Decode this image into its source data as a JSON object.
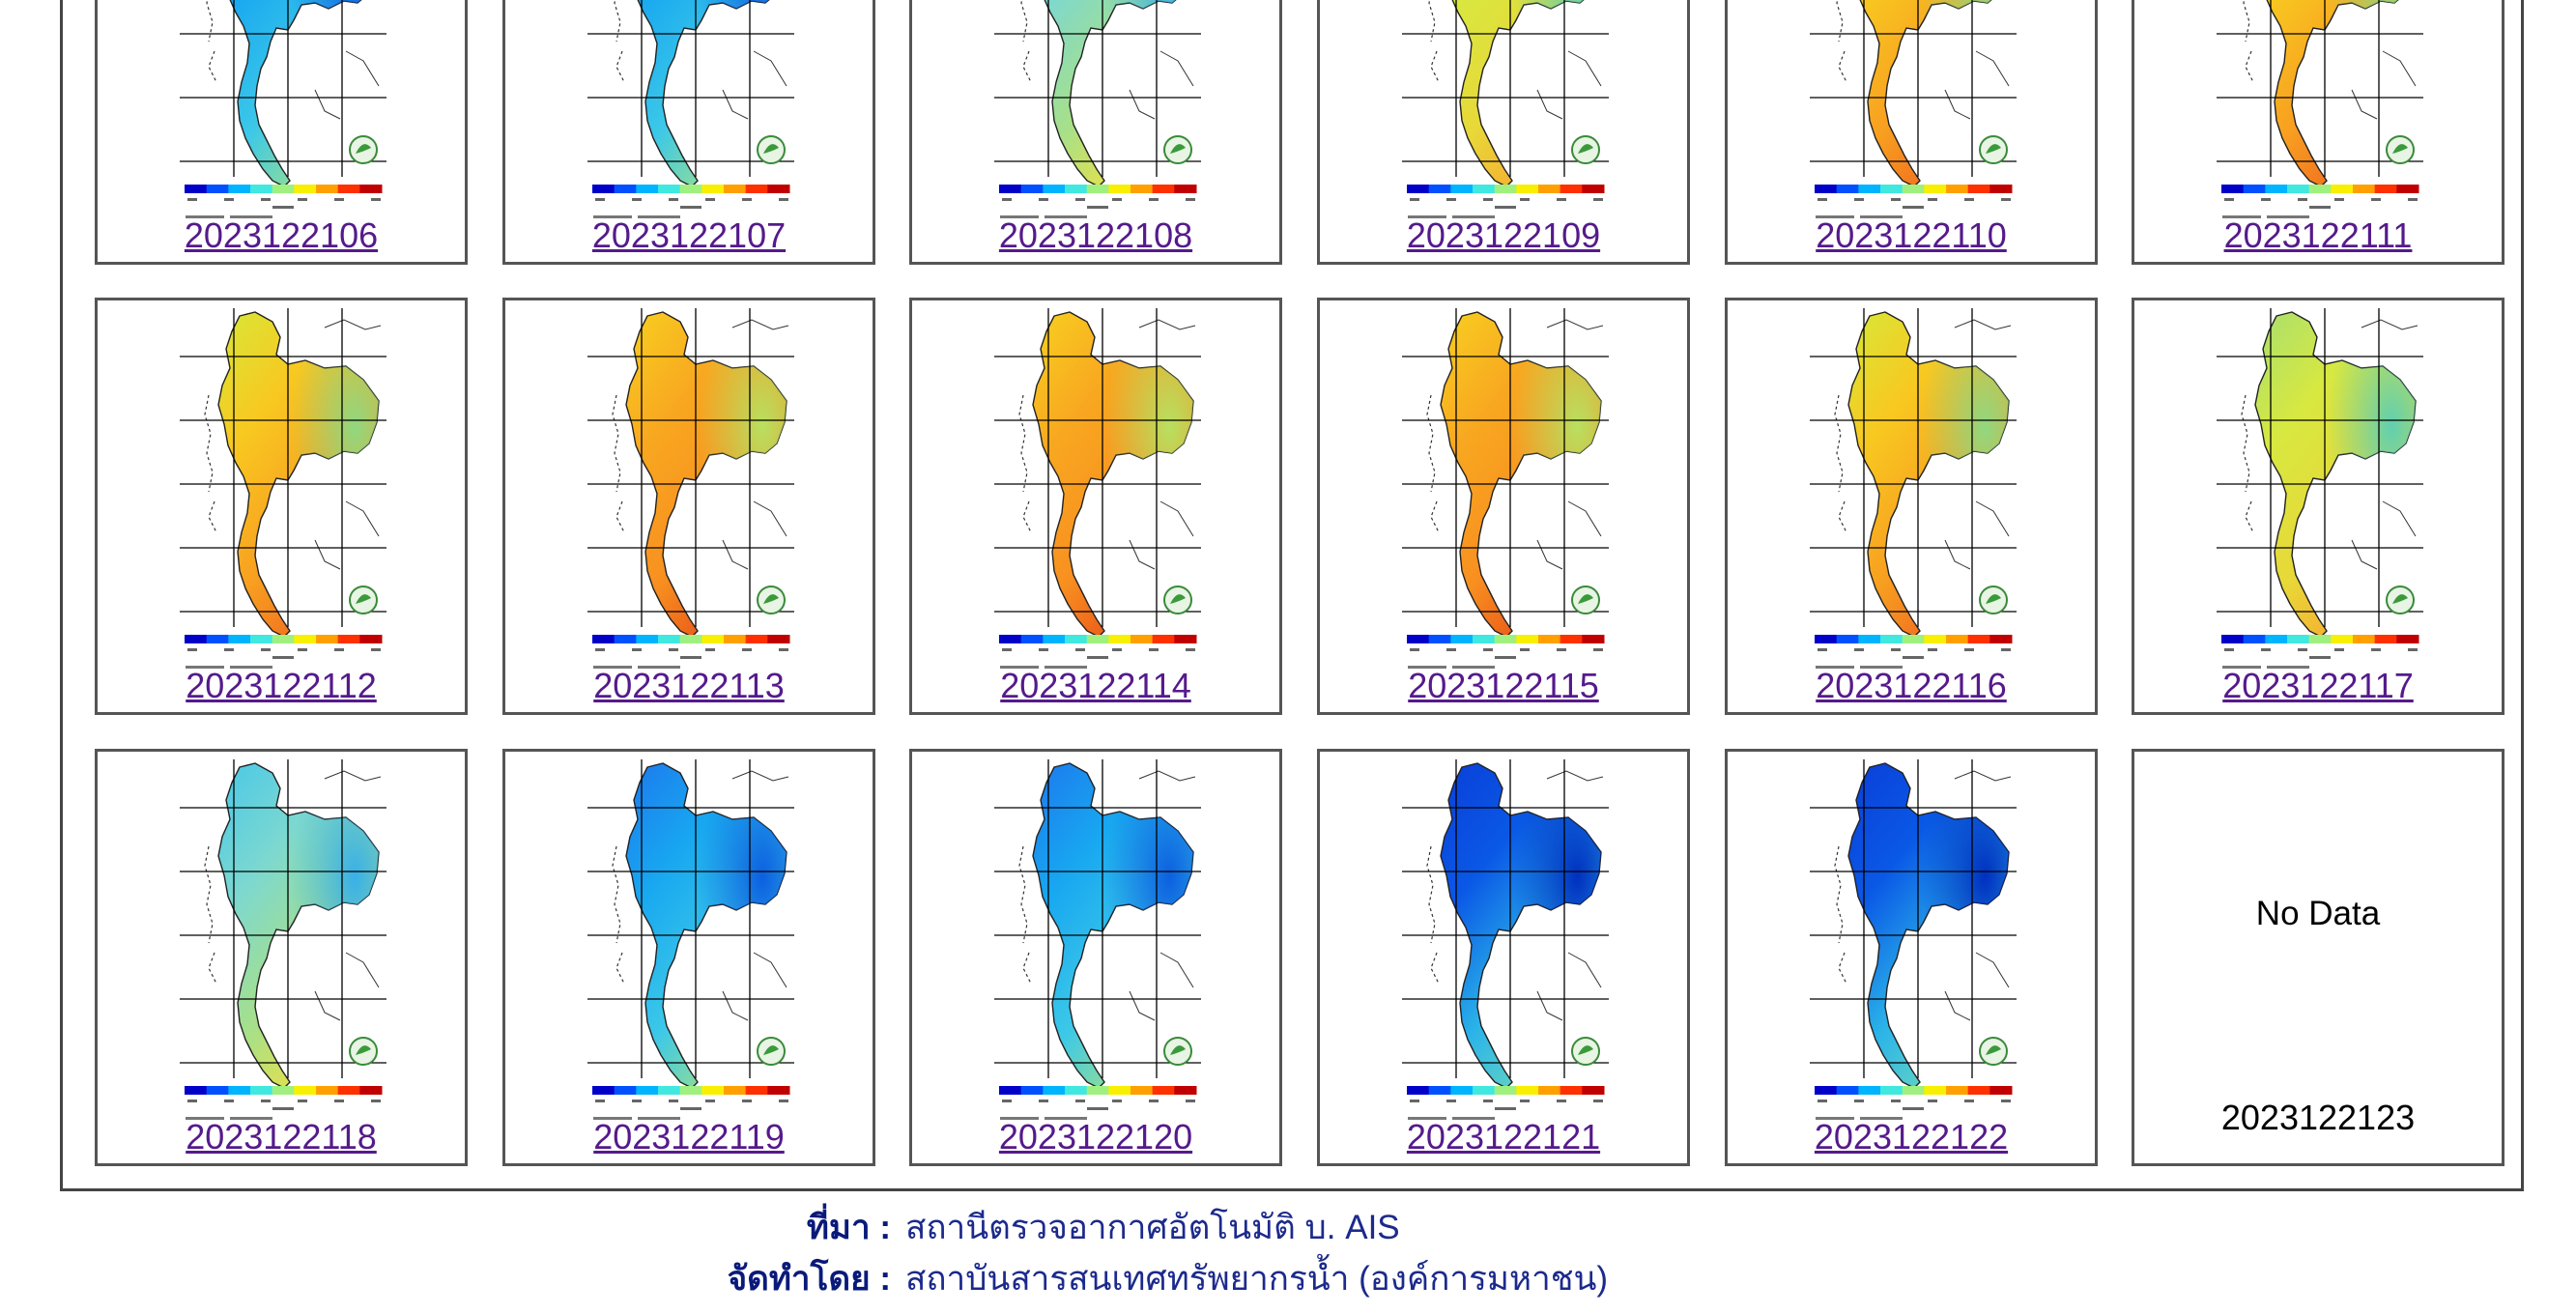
{
  "gallery": {
    "cells": [
      {
        "date": "2023122106",
        "tone": "cold",
        "has_data": true
      },
      {
        "date": "2023122107",
        "tone": "cold",
        "has_data": true
      },
      {
        "date": "2023122108",
        "tone": "cool",
        "has_data": true
      },
      {
        "date": "2023122109",
        "tone": "mild",
        "has_data": true
      },
      {
        "date": "2023122110",
        "tone": "warm",
        "has_data": true
      },
      {
        "date": "2023122111",
        "tone": "warm",
        "has_data": true
      },
      {
        "date": "2023122112",
        "tone": "warm",
        "has_data": true
      },
      {
        "date": "2023122113",
        "tone": "hot",
        "has_data": true
      },
      {
        "date": "2023122114",
        "tone": "hot",
        "has_data": true
      },
      {
        "date": "2023122115",
        "tone": "hot",
        "has_data": true
      },
      {
        "date": "2023122116",
        "tone": "warm",
        "has_data": true
      },
      {
        "date": "2023122117",
        "tone": "mild",
        "has_data": true
      },
      {
        "date": "2023122118",
        "tone": "cool",
        "has_data": true
      },
      {
        "date": "2023122119",
        "tone": "cold",
        "has_data": true
      },
      {
        "date": "2023122120",
        "tone": "cold",
        "has_data": true
      },
      {
        "date": "2023122121",
        "tone": "colder",
        "has_data": true
      },
      {
        "date": "2023122122",
        "tone": "colder",
        "has_data": true
      },
      {
        "date": "2023122123",
        "has_data": false,
        "message": "No Data"
      }
    ],
    "colorbar": [
      "#0000c8",
      "#0050ff",
      "#00b4ff",
      "#40e8e0",
      "#a0f080",
      "#f8f000",
      "#ffa000",
      "#ff3000",
      "#c00000"
    ],
    "tones": {
      "colder": {
        "north": "#0a3fd8",
        "center": "#0a58e6",
        "east": "#0030c0",
        "south": "#2bb4e8",
        "tip": "#6ad7c0"
      },
      "cold": {
        "north": "#1c78ee",
        "center": "#18a8f0",
        "east": "#0c60e0",
        "south": "#3cc8e8",
        "tip": "#9ce08c"
      },
      "cool": {
        "north": "#48c8e8",
        "center": "#7cd8d0",
        "east": "#38b0e8",
        "south": "#a8e088",
        "tip": "#f0e040"
      },
      "mild": {
        "north": "#a8e070",
        "center": "#d8e840",
        "east": "#60d0b0",
        "south": "#e8d838",
        "tip": "#f8a830"
      },
      "warm": {
        "north": "#d8e838",
        "center": "#f8c820",
        "east": "#90d880",
        "south": "#f8a020",
        "tip": "#f06820"
      },
      "hot": {
        "north": "#f8d020",
        "center": "#f8a820",
        "east": "#b8e060",
        "south": "#f89020",
        "tip": "#e85018"
      }
    }
  },
  "footer": {
    "source_label": "ที่มา :",
    "source_value": "สถานีตรวจอากาศอัตโนมัติ บ. AIS",
    "producer_label": "จัดทำโดย :",
    "producer_value": "สถาบันสารสนเทศทรัพยากรน้ำ (องค์การมหาชน)"
  }
}
